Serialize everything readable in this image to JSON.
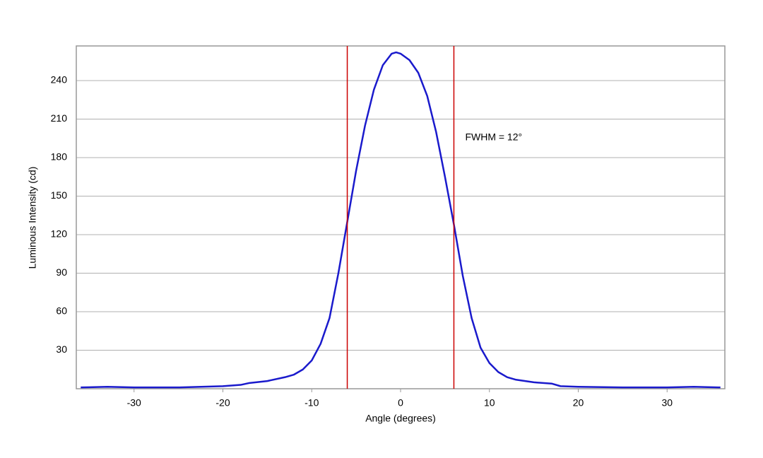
{
  "chart_data": {
    "type": "line",
    "x_label": "Angle (degrees)",
    "y_label": "Luminous Intensity (cd)",
    "annotation": "FWHM = 12°",
    "x": [
      -36,
      -33,
      -30,
      -25,
      -20,
      -18,
      -17,
      -15,
      -13,
      -12,
      -11,
      -10,
      -9,
      -8,
      -7,
      -6,
      -5,
      -4,
      -3,
      -2,
      -1,
      -0.5,
      0,
      1,
      2,
      3,
      4,
      5,
      6,
      7,
      8,
      9,
      10,
      11,
      12,
      13,
      15,
      17,
      18,
      20,
      25,
      30,
      33,
      36
    ],
    "series": [
      {
        "name": "Luminous Intensity",
        "color": "#1a1acc",
        "values": [
          1,
          1.5,
          1,
          1,
          2,
          3,
          4.5,
          6,
          9,
          11,
          15,
          22,
          35,
          55,
          90,
          130,
          170,
          205,
          233,
          252,
          261,
          262,
          261,
          256,
          246,
          228,
          200,
          165,
          128,
          88,
          55,
          32,
          20,
          13,
          9,
          7,
          5,
          4,
          2,
          1.5,
          1,
          1,
          1.5,
          1
        ]
      }
    ],
    "vlines": [
      -6,
      6
    ],
    "vline_color": "#cc0000",
    "xlim": [
      -36.5,
      36.5
    ],
    "xticks": [
      -30,
      -20,
      -10,
      0,
      10,
      20,
      30
    ],
    "ylim": [
      0,
      267
    ],
    "yticks": [
      30,
      60,
      90,
      120,
      150,
      180,
      210,
      240
    ],
    "grid": true
  }
}
